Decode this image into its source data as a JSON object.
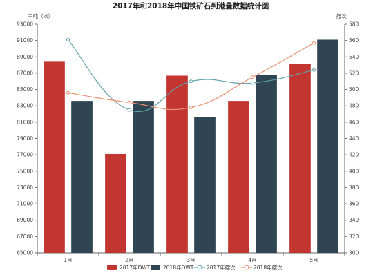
{
  "chart_data": {
    "type": "bar",
    "title": "2017年和2018年中国铁矿石到港量数据统计图",
    "y_left_label": "千吨（kt）",
    "y_right_label": "艘次",
    "categories": [
      "1月",
      "2月",
      "3月",
      "4月",
      "5月"
    ],
    "y_left_range": [
      65000,
      93000
    ],
    "y_left_ticks": [
      "93000",
      "91000",
      "89000",
      "87000",
      "85000",
      "83000",
      "81000",
      "79000",
      "77000",
      "75000",
      "73000",
      "71000",
      "69000",
      "67000",
      "65000"
    ],
    "y_right_range": [
      300,
      580
    ],
    "y_right_ticks": [
      "580",
      "560",
      "540",
      "520",
      "500",
      "480",
      "460",
      "440",
      "420",
      "400",
      "380",
      "360",
      "340",
      "320",
      "300"
    ],
    "bar_series": [
      {
        "name": "2017年DWT",
        "color": "#c23531",
        "values": [
          88400,
          77100,
          86700,
          83600,
          88100
        ]
      },
      {
        "name": "2018年DWT",
        "color": "#2f4554",
        "values": [
          83600,
          83600,
          81600,
          86800,
          91100
        ]
      }
    ],
    "line_series": [
      {
        "name": "2017年艘次",
        "color": "#61a0a8",
        "values": [
          561,
          475,
          510,
          508,
          524
        ]
      },
      {
        "name": "2018年艘次",
        "color": "#e98f6f",
        "values": [
          496,
          484,
          478,
          515,
          557
        ]
      }
    ],
    "grid": false,
    "legend_position": "bottom"
  }
}
